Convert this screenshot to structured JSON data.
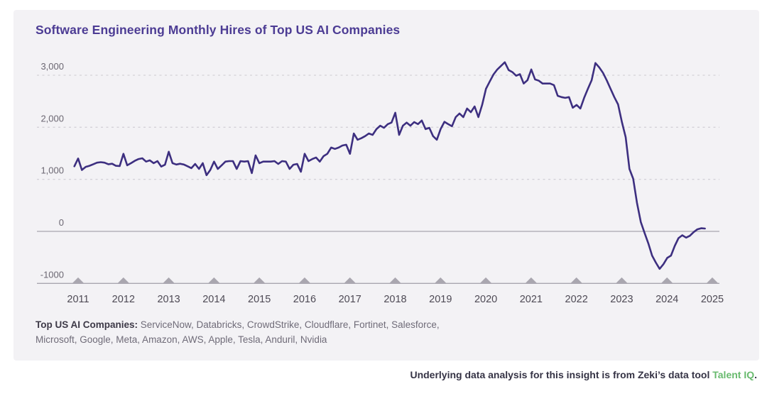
{
  "title": "Software Engineering Monthly Hires of Top US AI Companies",
  "footnote": {
    "label": "Top US AI Companies:",
    "companies": " ServiceNow, Databricks, CrowdStrike, Cloudflare, Fortinet, Salesforce, Microsoft, Google, Meta, Amazon, AWS, Apple, Tesla, Anduril, Nvidia"
  },
  "caption": {
    "text": "Underlying data analysis for this insight is from Zeki’s data tool ",
    "link_text": "Talent IQ",
    "suffix": "."
  },
  "colors": {
    "card_background": "#f3f2f5",
    "page_background": "#ffffff",
    "title": "#4c3c94",
    "line": "#3d2f80",
    "gridline_dashed": "#d4d1d8",
    "axis_solid": "#a9a6af",
    "triangle": "#a9a6af",
    "tick_text": "#4e4a55",
    "y_label_text": "#6b6772",
    "caption_text": "#353345",
    "caption_link": "#68ba6e"
  },
  "chart_data": {
    "type": "line",
    "title": "Software Engineering Monthly Hires of Top US AI Companies",
    "xlabel": "",
    "ylabel": "",
    "grid": "horizontal-dashed",
    "legend": "none",
    "ylim": [
      -1000,
      3400
    ],
    "y_axis": {
      "tick_labels": [
        "3,000",
        "2,000",
        "1,000",
        "0",
        "-1000"
      ],
      "tick_values": [
        3000,
        2000,
        1000,
        0,
        -1000
      ],
      "dashed_values": [
        3000,
        2000,
        1000
      ],
      "zero_line_value": 0,
      "baseline_value": -1000
    },
    "x_axis": {
      "tick_labels": [
        "2011",
        "2012",
        "2013",
        "2014",
        "2015",
        "2016",
        "2017",
        "2018",
        "2019",
        "2020",
        "2021",
        "2022",
        "2023",
        "2024",
        "2025"
      ],
      "marker": "up-triangle"
    },
    "series": [
      {
        "name": "Monthly software engineering hires",
        "start": "2010-12",
        "frequency": "monthly",
        "values": [
          1250,
          1400,
          1180,
          1240,
          1260,
          1290,
          1320,
          1330,
          1320,
          1290,
          1300,
          1260,
          1255,
          1490,
          1270,
          1310,
          1355,
          1390,
          1405,
          1340,
          1365,
          1310,
          1350,
          1245,
          1280,
          1530,
          1310,
          1285,
          1300,
          1285,
          1250,
          1215,
          1295,
          1200,
          1310,
          1080,
          1180,
          1340,
          1200,
          1270,
          1340,
          1350,
          1350,
          1200,
          1350,
          1340,
          1350,
          1120,
          1460,
          1310,
          1340,
          1340,
          1340,
          1350,
          1295,
          1350,
          1340,
          1200,
          1280,
          1295,
          1145,
          1490,
          1350,
          1390,
          1420,
          1340,
          1445,
          1490,
          1610,
          1585,
          1610,
          1650,
          1665,
          1490,
          1880,
          1760,
          1790,
          1830,
          1880,
          1855,
          1965,
          2030,
          1990,
          2060,
          2090,
          2280,
          1855,
          2030,
          2090,
          2030,
          2100,
          2060,
          2130,
          1965,
          1990,
          1830,
          1760,
          1965,
          2105,
          2060,
          2020,
          2195,
          2265,
          2195,
          2360,
          2290,
          2400,
          2195,
          2430,
          2740,
          2880,
          3015,
          3110,
          3180,
          3250,
          3100,
          3060,
          2990,
          3020,
          2840,
          2905,
          3110,
          2920,
          2895,
          2840,
          2840,
          2840,
          2810,
          2605,
          2580,
          2565,
          2580,
          2375,
          2430,
          2360,
          2565,
          2740,
          2905,
          3235,
          3150,
          3045,
          2900,
          2740,
          2580,
          2440,
          2100,
          1810,
          1200,
          1010,
          550,
          180,
          -30,
          -230,
          -465,
          -600,
          -720,
          -630,
          -510,
          -465,
          -280,
          -130,
          -75,
          -120,
          -85,
          -15,
          40,
          60,
          55
        ]
      }
    ]
  }
}
